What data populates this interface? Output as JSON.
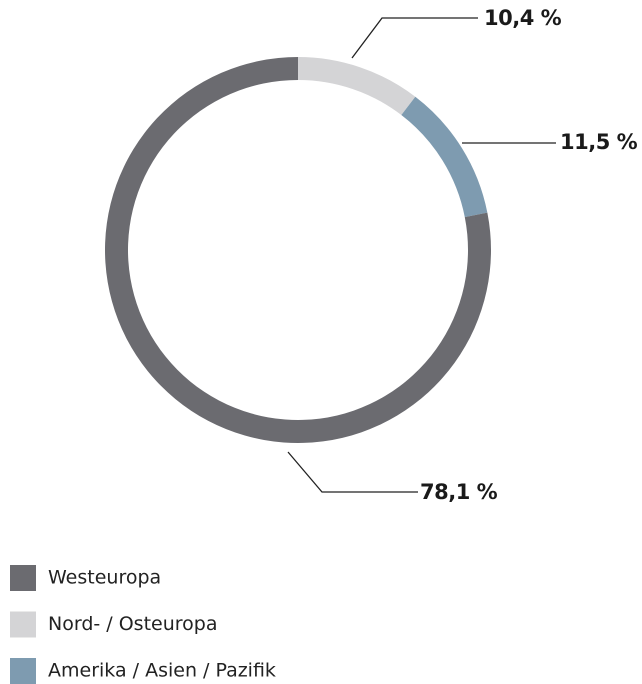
{
  "chart_data": {
    "type": "pie",
    "categories": [
      "Westeuropa",
      "Nord- / Osteuropa",
      "Amerika / Asien / Pazifik"
    ],
    "values": [
      78.1,
      10.4,
      11.5
    ],
    "value_labels": [
      "78,1 %",
      "10,4 %",
      "11,5 %"
    ],
    "colors": [
      "#6b6b70",
      "#d4d4d6",
      "#7e9bb0"
    ]
  }
}
